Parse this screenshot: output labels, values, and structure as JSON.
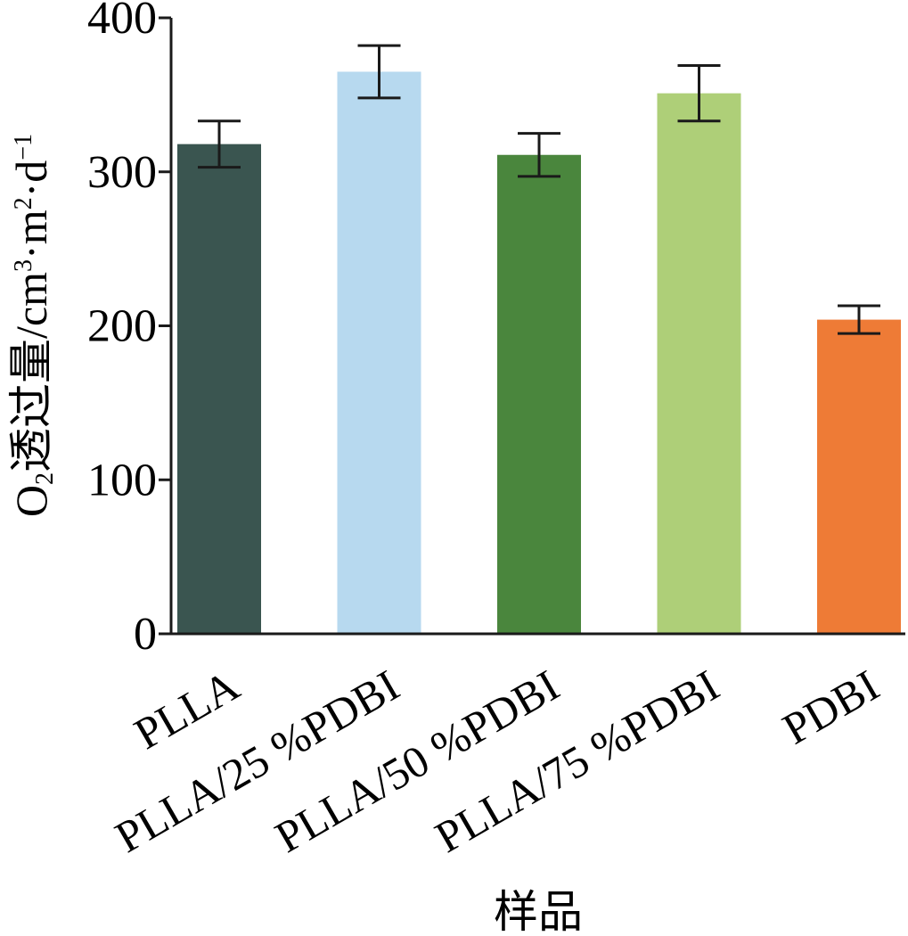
{
  "chart_data": {
    "type": "bar",
    "title": "",
    "xlabel": "样品",
    "ylabel": {
      "parts": [
        {
          "text": "O",
          "style": "normal"
        },
        {
          "text": "2",
          "style": "sub"
        },
        {
          "text": "透过量/cm",
          "style": "normal"
        },
        {
          "text": "3",
          "style": "sup"
        },
        {
          "text": "·m",
          "style": "normal"
        },
        {
          "text": "2",
          "style": "sup"
        },
        {
          "text": "·d",
          "style": "normal"
        },
        {
          "text": "−1",
          "style": "sup"
        }
      ]
    },
    "ylim": [
      0,
      400
    ],
    "yticks": [
      0,
      100,
      200,
      300,
      400
    ],
    "grid": false,
    "legend": "none",
    "categories": [
      "PLLA",
      "PLLA/25 %PDBI",
      "PLLA/50 %PDBI",
      "PLLA/75 %PDBI",
      "PDBI"
    ],
    "values": [
      318,
      365,
      311,
      351,
      204
    ],
    "errors": [
      15,
      17,
      14,
      18,
      9
    ],
    "colors": [
      "#3a5550",
      "#b7d9ef",
      "#4a863d",
      "#aecf78",
      "#ee7b36"
    ]
  }
}
